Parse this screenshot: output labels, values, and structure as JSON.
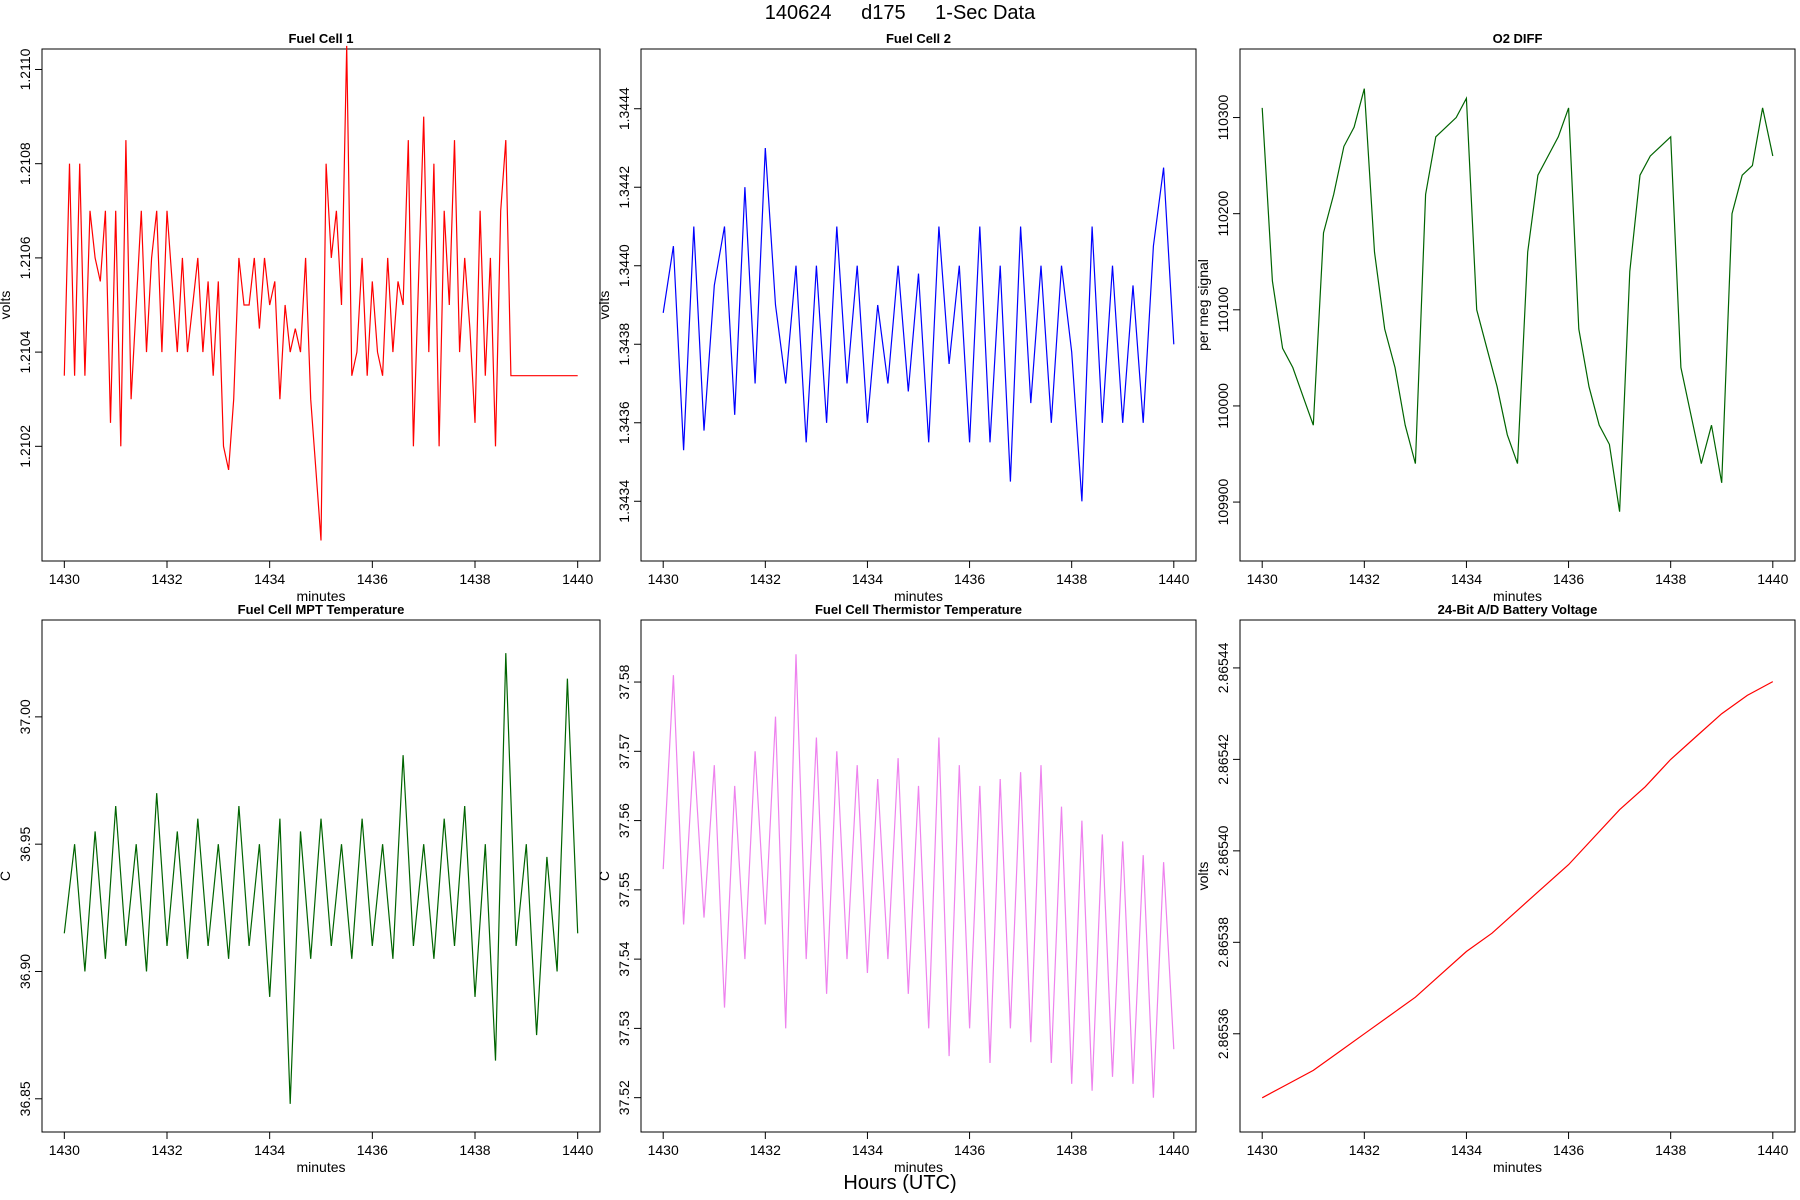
{
  "header": {
    "date": "140624",
    "day": "d175",
    "interval": "1-Sec Data"
  },
  "footer": {
    "xcaption": "Hours (UTC)"
  },
  "chart_data": [
    {
      "type": "line",
      "title": "Fuel Cell 1",
      "xlabel": "minutes",
      "ylabel": "volts",
      "color": "#ff0000",
      "xlim": [
        1430,
        1440
      ],
      "ylim": [
        1.21,
        1.211
      ],
      "x_ticks": [
        1430,
        1432,
        1434,
        1436,
        1438,
        1440
      ],
      "x_tick_labels": [
        "1430",
        "1432",
        "1434",
        "1436",
        "1438",
        "1440"
      ],
      "y_ticks": [
        1.2102,
        1.2104,
        1.2106,
        1.2108,
        1.211
      ],
      "y_tick_labels": [
        "1.2102",
        "1.2104",
        "1.2106",
        "1.2108",
        "1.2110"
      ],
      "x": [
        1430.0,
        1430.1,
        1430.2,
        1430.3,
        1430.4,
        1430.5,
        1430.6,
        1430.7,
        1430.8,
        1430.9,
        1431.0,
        1431.1,
        1431.2,
        1431.3,
        1431.4,
        1431.5,
        1431.6,
        1431.7,
        1431.8,
        1431.9,
        1432.0,
        1432.1,
        1432.2,
        1432.3,
        1432.4,
        1432.5,
        1432.6,
        1432.7,
        1432.8,
        1432.9,
        1433.0,
        1433.1,
        1433.2,
        1433.3,
        1433.4,
        1433.5,
        1433.6,
        1433.7,
        1433.8,
        1433.9,
        1434.0,
        1434.1,
        1434.2,
        1434.3,
        1434.4,
        1434.5,
        1434.6,
        1434.7,
        1434.8,
        1434.9,
        1435.0,
        1435.1,
        1435.2,
        1435.3,
        1435.4,
        1435.5,
        1435.6,
        1435.7,
        1435.8,
        1435.9,
        1436.0,
        1436.1,
        1436.2,
        1436.3,
        1436.4,
        1436.5,
        1436.6,
        1436.7,
        1436.8,
        1436.9,
        1437.0,
        1437.1,
        1437.2,
        1437.3,
        1437.4,
        1437.5,
        1437.6,
        1437.7,
        1437.8,
        1437.9,
        1438.0,
        1438.1,
        1438.2,
        1438.3,
        1438.4,
        1438.5,
        1438.6,
        1438.7,
        1438.8,
        1438.9,
        1439.0,
        1439.1,
        1439.2,
        1439.3,
        1439.4,
        1439.5,
        1439.6,
        1439.7,
        1439.8,
        1439.9,
        1440.0
      ],
      "y": [
        1.21035,
        1.2108,
        1.21035,
        1.2108,
        1.21035,
        1.2107,
        1.2106,
        1.21055,
        1.2107,
        1.21025,
        1.2107,
        1.2102,
        1.21085,
        1.2103,
        1.2105,
        1.2107,
        1.2104,
        1.2106,
        1.2107,
        1.2104,
        1.2107,
        1.21055,
        1.2104,
        1.2106,
        1.2104,
        1.2105,
        1.2106,
        1.2104,
        1.21055,
        1.21035,
        1.21055,
        1.2102,
        1.21015,
        1.2103,
        1.2106,
        1.2105,
        1.2105,
        1.2106,
        1.21045,
        1.2106,
        1.2105,
        1.21055,
        1.2103,
        1.2105,
        1.2104,
        1.21045,
        1.2104,
        1.2106,
        1.2103,
        1.21015,
        1.21,
        1.2108,
        1.2106,
        1.2107,
        1.2105,
        1.21105,
        1.21035,
        1.2104,
        1.2106,
        1.21035,
        1.21055,
        1.2104,
        1.21035,
        1.2106,
        1.2104,
        1.21055,
        1.2105,
        1.21085,
        1.2102,
        1.21055,
        1.2109,
        1.2104,
        1.2108,
        1.2102,
        1.2107,
        1.2105,
        1.21085,
        1.2104,
        1.2106,
        1.21045,
        1.21025,
        1.2107,
        1.21035,
        1.2106,
        1.2102,
        1.2107,
        1.21085,
        1.21035,
        1.21035,
        1.21035,
        1.21035,
        1.21035,
        1.21035,
        1.21035,
        1.21035,
        1.21035,
        1.21035,
        1.21035,
        1.21035,
        1.21035,
        1.21035
      ]
    },
    {
      "type": "line",
      "title": "Fuel Cell 2",
      "xlabel": "minutes",
      "ylabel": "volts",
      "color": "#0000ff",
      "xlim": [
        1430,
        1440
      ],
      "ylim": [
        1.3433,
        1.3445
      ],
      "x_ticks": [
        1430,
        1432,
        1434,
        1436,
        1438,
        1440
      ],
      "x_tick_labels": [
        "1430",
        "1432",
        "1434",
        "1436",
        "1438",
        "1440"
      ],
      "y_ticks": [
        1.3434,
        1.3436,
        1.3438,
        1.344,
        1.3442,
        1.3444
      ],
      "y_tick_labels": [
        "1.3434",
        "1.3436",
        "1.3438",
        "1.3440",
        "1.3442",
        "1.3444"
      ],
      "x": [
        1430.0,
        1430.2,
        1430.4,
        1430.6,
        1430.8,
        1431.0,
        1431.2,
        1431.4,
        1431.6,
        1431.8,
        1432.0,
        1432.2,
        1432.4,
        1432.6,
        1432.8,
        1433.0,
        1433.2,
        1433.4,
        1433.6,
        1433.8,
        1434.0,
        1434.2,
        1434.4,
        1434.6,
        1434.8,
        1435.0,
        1435.2,
        1435.4,
        1435.6,
        1435.8,
        1436.0,
        1436.2,
        1436.4,
        1436.6,
        1436.8,
        1437.0,
        1437.2,
        1437.4,
        1437.6,
        1437.8,
        1438.0,
        1438.2,
        1438.4,
        1438.6,
        1438.8,
        1439.0,
        1439.2,
        1439.4,
        1439.6,
        1439.8,
        1440.0
      ],
      "y": [
        1.34388,
        1.34405,
        1.34353,
        1.3441,
        1.34358,
        1.34395,
        1.3441,
        1.34362,
        1.3442,
        1.3437,
        1.3443,
        1.3439,
        1.3437,
        1.344,
        1.34355,
        1.344,
        1.3436,
        1.3441,
        1.3437,
        1.344,
        1.3436,
        1.3439,
        1.3437,
        1.344,
        1.34368,
        1.34398,
        1.34355,
        1.3441,
        1.34375,
        1.344,
        1.34355,
        1.3441,
        1.34355,
        1.344,
        1.34345,
        1.3441,
        1.34365,
        1.344,
        1.3436,
        1.344,
        1.34378,
        1.3434,
        1.3441,
        1.3436,
        1.344,
        1.3436,
        1.34395,
        1.3436,
        1.34405,
        1.34425,
        1.3438
      ]
    },
    {
      "type": "line",
      "title": "O2 DIFF",
      "xlabel": "minutes",
      "ylabel": "per meg signal",
      "color": "#006400",
      "xlim": [
        1430,
        1440
      ],
      "ylim": [
        109860,
        110350
      ],
      "x_ticks": [
        1430,
        1432,
        1434,
        1436,
        1438,
        1440
      ],
      "x_tick_labels": [
        "1430",
        "1432",
        "1434",
        "1436",
        "1438",
        "1440"
      ],
      "y_ticks": [
        109900,
        110000,
        110100,
        110200,
        110300
      ],
      "y_tick_labels": [
        "109900",
        "110000",
        "110100",
        "110200",
        "110300"
      ],
      "x": [
        1430.0,
        1430.2,
        1430.4,
        1430.6,
        1430.8,
        1431.0,
        1431.2,
        1431.4,
        1431.6,
        1431.8,
        1432.0,
        1432.2,
        1432.4,
        1432.6,
        1432.8,
        1433.0,
        1433.2,
        1433.4,
        1433.6,
        1433.8,
        1434.0,
        1434.2,
        1434.4,
        1434.6,
        1434.8,
        1435.0,
        1435.2,
        1435.4,
        1435.6,
        1435.8,
        1436.0,
        1436.2,
        1436.4,
        1436.6,
        1436.8,
        1437.0,
        1437.2,
        1437.4,
        1437.6,
        1437.8,
        1438.0,
        1438.2,
        1438.4,
        1438.6,
        1438.8,
        1439.0,
        1439.2,
        1439.4,
        1439.6,
        1439.8,
        1440.0
      ],
      "y": [
        110310,
        110130,
        110060,
        110040,
        110010,
        109980,
        110180,
        110220,
        110270,
        110290,
        110330,
        110160,
        110080,
        110040,
        109980,
        109940,
        110220,
        110280,
        110290,
        110300,
        110320,
        110100,
        110060,
        110020,
        109970,
        109940,
        110160,
        110240,
        110260,
        110280,
        110310,
        110080,
        110020,
        109980,
        109960,
        109890,
        110140,
        110240,
        110260,
        110270,
        110280,
        110040,
        109990,
        109940,
        109980,
        109920,
        110200,
        110240,
        110250,
        110310,
        110260
      ]
    },
    {
      "type": "line",
      "title": "Fuel Cell MPT Temperature",
      "xlabel": "minutes",
      "ylabel": "C",
      "color": "#006400",
      "xlim": [
        1430,
        1440
      ],
      "ylim": [
        36.845,
        37.03
      ],
      "x_ticks": [
        1430,
        1432,
        1434,
        1436,
        1438,
        1440
      ],
      "x_tick_labels": [
        "1430",
        "1432",
        "1434",
        "1436",
        "1438",
        "1440"
      ],
      "y_ticks": [
        36.85,
        36.9,
        36.95,
        37.0
      ],
      "y_tick_labels": [
        "36.85",
        "36.90",
        "36.95",
        "37.00"
      ],
      "x": [
        1430.0,
        1430.2,
        1430.4,
        1430.6,
        1430.8,
        1431.0,
        1431.2,
        1431.4,
        1431.6,
        1431.8,
        1432.0,
        1432.2,
        1432.4,
        1432.6,
        1432.8,
        1433.0,
        1433.2,
        1433.4,
        1433.6,
        1433.8,
        1434.0,
        1434.2,
        1434.4,
        1434.6,
        1434.8,
        1435.0,
        1435.2,
        1435.4,
        1435.6,
        1435.8,
        1436.0,
        1436.2,
        1436.4,
        1436.6,
        1436.8,
        1437.0,
        1437.2,
        1437.4,
        1437.6,
        1437.8,
        1438.0,
        1438.2,
        1438.4,
        1438.6,
        1438.8,
        1439.0,
        1439.2,
        1439.4,
        1439.6,
        1439.8,
        1440.0
      ],
      "y": [
        36.915,
        36.95,
        36.9,
        36.955,
        36.905,
        36.965,
        36.91,
        36.95,
        36.9,
        36.97,
        36.91,
        36.955,
        36.905,
        36.96,
        36.91,
        36.95,
        36.905,
        36.965,
        36.91,
        36.95,
        36.89,
        36.96,
        36.848,
        36.955,
        36.905,
        36.96,
        36.91,
        36.95,
        36.905,
        36.96,
        36.91,
        36.95,
        36.905,
        36.985,
        36.91,
        36.95,
        36.905,
        36.96,
        36.91,
        36.965,
        36.89,
        36.95,
        36.865,
        37.025,
        36.91,
        36.95,
        36.875,
        36.945,
        36.9,
        37.015,
        36.915
      ]
    },
    {
      "type": "line",
      "title": "Fuel Cell Thermistor Temperature",
      "xlabel": "minutes",
      "ylabel": "C",
      "color": "#ee82ee",
      "xlim": [
        1430,
        1440
      ],
      "ylim": [
        37.518,
        37.586
      ],
      "x_ticks": [
        1430,
        1432,
        1434,
        1436,
        1438,
        1440
      ],
      "x_tick_labels": [
        "1430",
        "1432",
        "1434",
        "1436",
        "1438",
        "1440"
      ],
      "y_ticks": [
        37.52,
        37.53,
        37.54,
        37.55,
        37.56,
        37.57,
        37.58
      ],
      "y_tick_labels": [
        "37.52",
        "37.53",
        "37.54",
        "37.55",
        "37.56",
        "37.57",
        "37.58"
      ],
      "x": [
        1430.0,
        1430.2,
        1430.4,
        1430.6,
        1430.8,
        1431.0,
        1431.2,
        1431.4,
        1431.6,
        1431.8,
        1432.0,
        1432.2,
        1432.4,
        1432.6,
        1432.8,
        1433.0,
        1433.2,
        1433.4,
        1433.6,
        1433.8,
        1434.0,
        1434.2,
        1434.4,
        1434.6,
        1434.8,
        1435.0,
        1435.2,
        1435.4,
        1435.6,
        1435.8,
        1436.0,
        1436.2,
        1436.4,
        1436.6,
        1436.8,
        1437.0,
        1437.2,
        1437.4,
        1437.6,
        1437.8,
        1438.0,
        1438.2,
        1438.4,
        1438.6,
        1438.8,
        1439.0,
        1439.2,
        1439.4,
        1439.6,
        1439.8,
        1440.0
      ],
      "y": [
        37.553,
        37.581,
        37.545,
        37.57,
        37.546,
        37.568,
        37.533,
        37.565,
        37.54,
        37.57,
        37.545,
        37.575,
        37.53,
        37.584,
        37.54,
        37.572,
        37.535,
        37.57,
        37.54,
        37.568,
        37.538,
        37.566,
        37.54,
        37.569,
        37.535,
        37.565,
        37.53,
        37.572,
        37.526,
        37.568,
        37.53,
        37.565,
        37.525,
        37.566,
        37.53,
        37.567,
        37.528,
        37.568,
        37.525,
        37.562,
        37.522,
        37.56,
        37.521,
        37.558,
        37.523,
        37.557,
        37.522,
        37.555,
        37.52,
        37.554,
        37.527
      ]
    },
    {
      "type": "line",
      "title": "24-Bit A/D Battery Voltage",
      "xlabel": "minutes",
      "ylabel": "volts",
      "color": "#ff0000",
      "xlim": [
        1430,
        1440
      ],
      "ylim": [
        2.865343,
        2.865446
      ],
      "x_ticks": [
        1430,
        1432,
        1434,
        1436,
        1438,
        1440
      ],
      "x_tick_labels": [
        "1430",
        "1432",
        "1434",
        "1436",
        "1438",
        "1440"
      ],
      "y_ticks": [
        2.86536,
        2.86538,
        2.8654,
        2.86542,
        2.86544
      ],
      "y_tick_labels": [
        "2.86536",
        "2.86538",
        "2.86540",
        "2.86542",
        "2.86544"
      ],
      "x": [
        1430.0,
        1430.5,
        1431.0,
        1431.5,
        1432.0,
        1432.5,
        1433.0,
        1433.5,
        1434.0,
        1434.5,
        1435.0,
        1435.5,
        1436.0,
        1436.5,
        1437.0,
        1437.5,
        1438.0,
        1438.5,
        1439.0,
        1439.5,
        1440.0
      ],
      "y": [
        2.865346,
        2.865349,
        2.865352,
        2.865356,
        2.86536,
        2.865364,
        2.865368,
        2.865373,
        2.865378,
        2.865382,
        2.865387,
        2.865392,
        2.865397,
        2.865403,
        2.865409,
        2.865414,
        2.86542,
        2.865425,
        2.86543,
        2.865434,
        2.865437
      ]
    }
  ]
}
